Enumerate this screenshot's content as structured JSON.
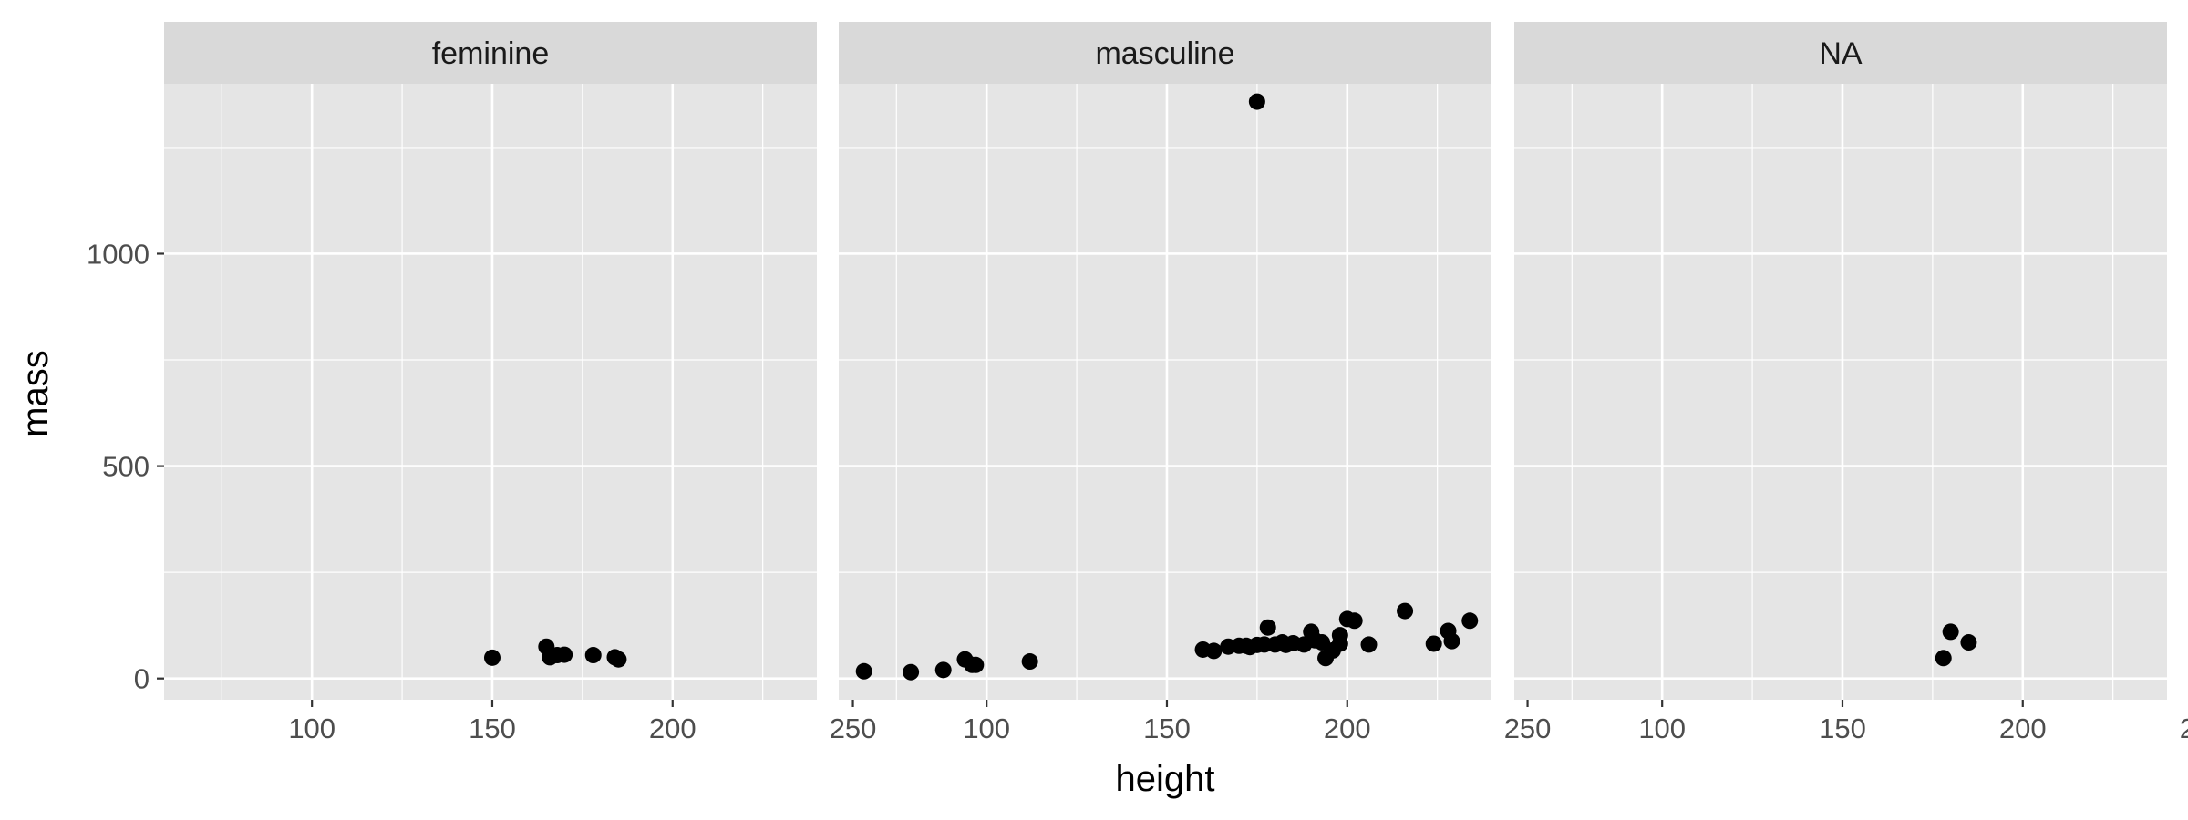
{
  "chart_data": {
    "type": "scatter",
    "facet_variable": "gender",
    "xlabel": "height",
    "ylabel": "mass",
    "xlim": [
      59,
      240
    ],
    "ylim": [
      -50,
      1400
    ],
    "x_ticks": [
      100,
      150,
      200,
      250
    ],
    "y_ticks": [
      0,
      500,
      1000
    ],
    "grid": true,
    "background_color": "#e5e5e5",
    "strip_color": "#d9d9d9",
    "grid_color": "#ffffff",
    "point_color": "#000000",
    "panels": [
      {
        "label": "feminine",
        "points": [
          {
            "x": 150,
            "y": 49
          },
          {
            "x": 165,
            "y": 75
          },
          {
            "x": 166,
            "y": 50
          },
          {
            "x": 168,
            "y": 55
          },
          {
            "x": 170,
            "y": 56
          },
          {
            "x": 178,
            "y": 55
          },
          {
            "x": 184,
            "y": 50
          },
          {
            "x": 185,
            "y": 45
          }
        ]
      },
      {
        "label": "masculine",
        "points": [
          {
            "x": 66,
            "y": 17
          },
          {
            "x": 79,
            "y": 15
          },
          {
            "x": 88,
            "y": 20
          },
          {
            "x": 94,
            "y": 45
          },
          {
            "x": 96,
            "y": 32
          },
          {
            "x": 97,
            "y": 32
          },
          {
            "x": 112,
            "y": 40
          },
          {
            "x": 175,
            "y": 1358
          },
          {
            "x": 160,
            "y": 68
          },
          {
            "x": 163,
            "y": 65
          },
          {
            "x": 167,
            "y": 75
          },
          {
            "x": 170,
            "y": 77
          },
          {
            "x": 172,
            "y": 77
          },
          {
            "x": 173,
            "y": 74
          },
          {
            "x": 175,
            "y": 79
          },
          {
            "x": 177,
            "y": 80
          },
          {
            "x": 178,
            "y": 120
          },
          {
            "x": 180,
            "y": 80
          },
          {
            "x": 182,
            "y": 85
          },
          {
            "x": 183,
            "y": 79
          },
          {
            "x": 185,
            "y": 83
          },
          {
            "x": 188,
            "y": 80
          },
          {
            "x": 190,
            "y": 110
          },
          {
            "x": 191,
            "y": 90
          },
          {
            "x": 193,
            "y": 85
          },
          {
            "x": 194,
            "y": 48
          },
          {
            "x": 196,
            "y": 66
          },
          {
            "x": 198,
            "y": 82
          },
          {
            "x": 198,
            "y": 102
          },
          {
            "x": 200,
            "y": 140
          },
          {
            "x": 202,
            "y": 136
          },
          {
            "x": 206,
            "y": 80
          },
          {
            "x": 216,
            "y": 159
          },
          {
            "x": 224,
            "y": 82
          },
          {
            "x": 228,
            "y": 112
          },
          {
            "x": 229,
            "y": 88
          },
          {
            "x": 234,
            "y": 136
          }
        ]
      },
      {
        "label": "NA",
        "points": [
          {
            "x": 178,
            "y": 48
          },
          {
            "x": 180,
            "y": 110
          },
          {
            "x": 185,
            "y": 85
          }
        ]
      }
    ]
  }
}
